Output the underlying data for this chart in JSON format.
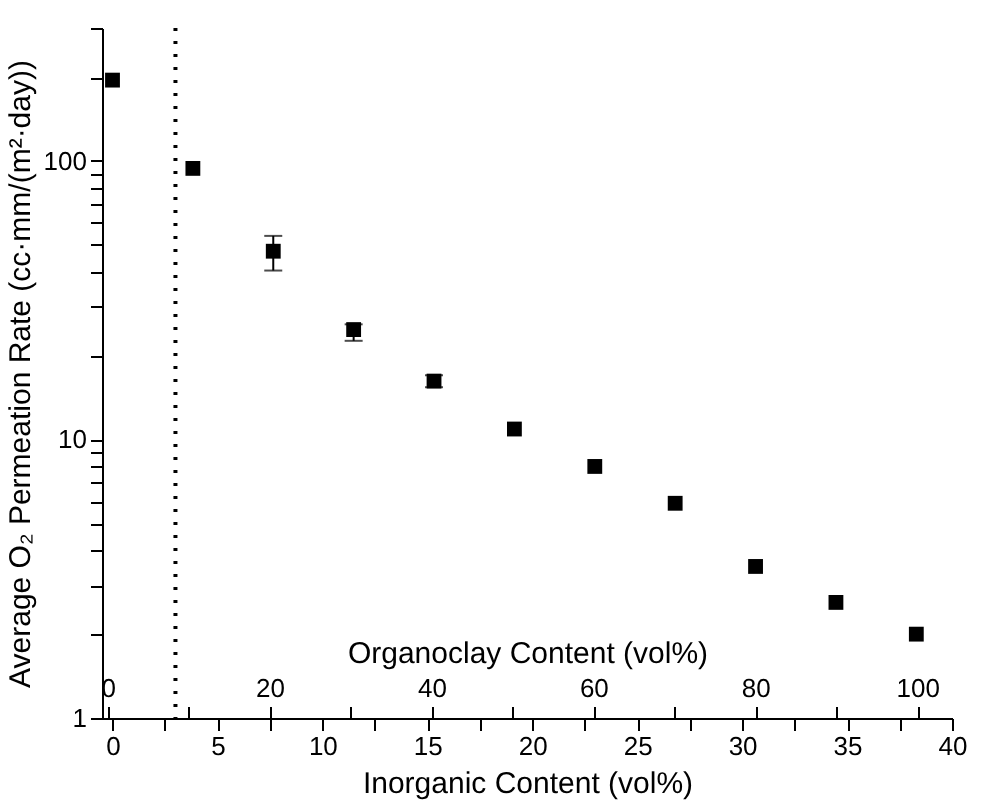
{
  "chart_data": {
    "type": "scatter",
    "xlabel": "Inorganic Content (vol%)",
    "x2label": "Organoclay Content (vol%)",
    "ylabel": "Average O₂ Permeation Rate (cc·mm/(m²·day))",
    "x": [
      0,
      3.83,
      7.66,
      11.49,
      15.32,
      19.15,
      22.98,
      26.81,
      30.64,
      34.47,
      38.3
    ],
    "series": [
      {
        "color": "#000000",
        "values": [
          195,
          94,
          47.4,
          24.8,
          16.2,
          10.9,
          8.0,
          5.9,
          3.5,
          2.6,
          2.0
        ],
        "errors": [
          null,
          null,
          [
            40.4,
            53.8
          ],
          [
            22.6,
            25.9
          ],
          [
            15.4,
            17.0
          ],
          null,
          null,
          null,
          null,
          null,
          null
        ]
      }
    ],
    "log": "y",
    "xlim": [
      -0.5,
      40
    ],
    "xticks": [
      0,
      {
        "value": 2.5,
        "label": null
      },
      5,
      {
        "value": 7.5,
        "label": null
      },
      10,
      {
        "value": 12.5,
        "label": null
      },
      15,
      {
        "value": 17.5,
        "label": null
      },
      20,
      {
        "value": 22.5,
        "label": null
      },
      25,
      {
        "value": 27.5,
        "label": null
      },
      30,
      {
        "value": 32.5,
        "label": null
      },
      35,
      {
        "value": 37.5,
        "label": null
      },
      40
    ],
    "x2lim": [
      -0.7,
      104.3
    ],
    "x2ticks": [
      0,
      {
        "value": 10,
        "label": null
      },
      20,
      {
        "value": 30,
        "label": null
      },
      40,
      {
        "value": 50,
        "label": null
      },
      60,
      {
        "value": 70,
        "label": null
      },
      80,
      {
        "value": 90,
        "label": null
      },
      100
    ],
    "ylim": [
      1,
      300
    ],
    "yticks": [
      1,
      {
        "value": 2,
        "label": null
      },
      {
        "value": 3,
        "label": null
      },
      {
        "value": 4,
        "label": null
      },
      {
        "value": 5,
        "label": null
      },
      {
        "value": 6,
        "label": null
      },
      {
        "value": 7,
        "label": null
      },
      {
        "value": 8,
        "label": null
      },
      {
        "value": 9,
        "label": null
      },
      10,
      {
        "value": 20,
        "label": null
      },
      {
        "value": 30,
        "label": null
      },
      {
        "value": 40,
        "label": null
      },
      {
        "value": 50,
        "label": null
      },
      {
        "value": 60,
        "label": null
      },
      {
        "value": 70,
        "label": null
      },
      {
        "value": 80,
        "label": null
      },
      {
        "value": 90,
        "label": null
      },
      100,
      {
        "value": 200,
        "label": null
      },
      {
        "value": 300,
        "label": null
      }
    ],
    "ref_lines": [
      {
        "axis": "x",
        "value": 3,
        "color": "#000000",
        "line_style": "dotted"
      }
    ],
    "marker": "square",
    "grid": false
  }
}
